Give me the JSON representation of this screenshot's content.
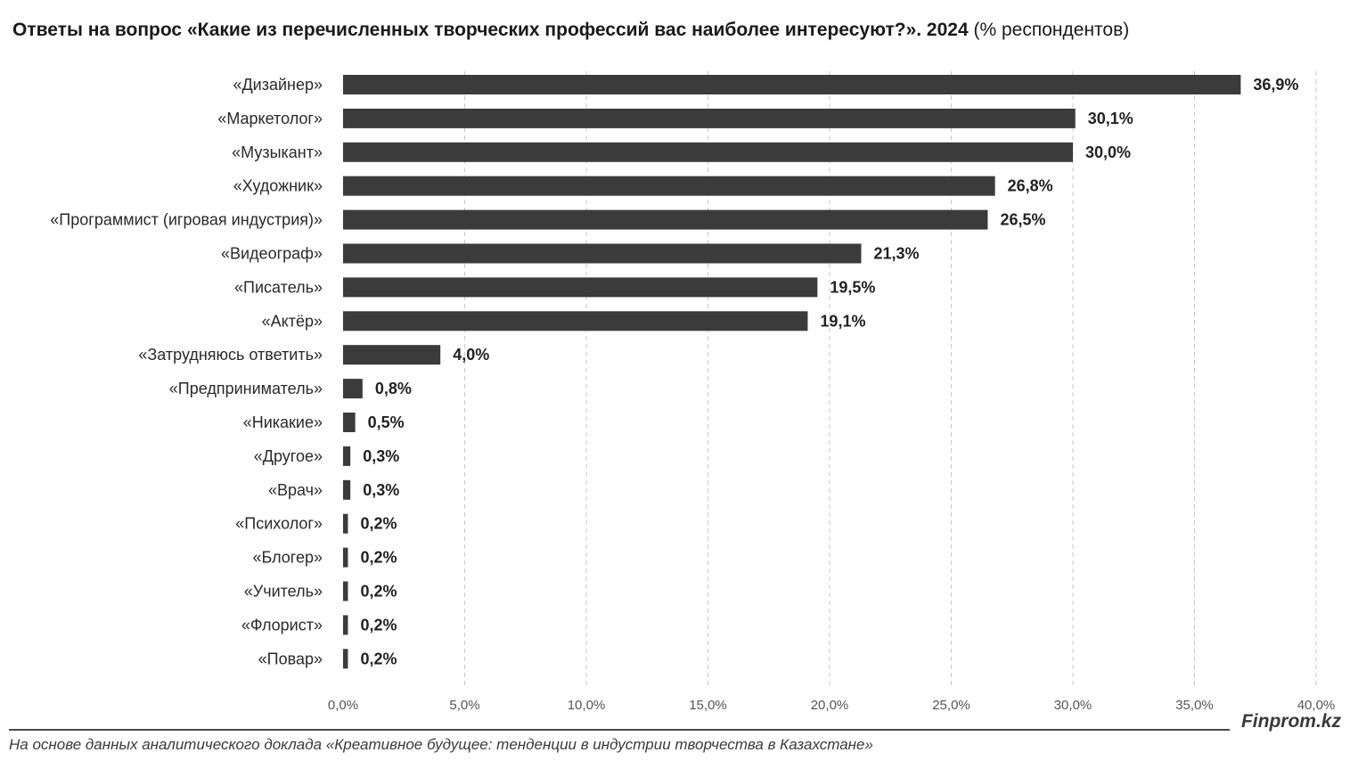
{
  "header": {
    "title_main": "Ответы на вопрос «Какие из перечисленных творческих профессий вас наиболее интересуют?». 2024",
    "title_unit": "(% респондентов)"
  },
  "chart_data": {
    "type": "bar",
    "orientation": "horizontal",
    "categories": [
      "«Дизайнер»",
      "«Маркетолог»",
      "«Музыкант»",
      "«Художник»",
      "«Программист (игровая индустрия)»",
      "«Видеограф»",
      "«Писатель»",
      "«Актёр»",
      "«Затрудняюсь ответить»",
      "«Предприниматель»",
      "«Никакие»",
      "«Другое»",
      "«Врач»",
      "«Психолог»",
      "«Блогер»",
      "«Учитель»",
      "«Флорист»",
      "«Повар»"
    ],
    "values": [
      36.9,
      30.1,
      30.0,
      26.8,
      26.5,
      21.3,
      19.5,
      19.1,
      4.0,
      0.8,
      0.5,
      0.3,
      0.3,
      0.2,
      0.2,
      0.2,
      0.2,
      0.2
    ],
    "value_labels": [
      "36,9%",
      "30,1%",
      "30,0%",
      "26,8%",
      "26,5%",
      "21,3%",
      "19,5%",
      "19,1%",
      "4,0%",
      "0,8%",
      "0,5%",
      "0,3%",
      "0,3%",
      "0,2%",
      "0,2%",
      "0,2%",
      "0,2%",
      "0,2%"
    ],
    "xlim": [
      0,
      40
    ],
    "xticks": [
      0,
      5,
      10,
      15,
      20,
      25,
      30,
      35,
      40
    ],
    "xtick_labels": [
      "0,0%",
      "5,0%",
      "10,0%",
      "15,0%",
      "20,0%",
      "25,0%",
      "30,0%",
      "35,0%",
      "40,0%"
    ],
    "grid": "vertical-dashed",
    "legend": "none",
    "bar_color": "#3b3b3b",
    "grid_color": "#c8c8c8"
  },
  "footer": {
    "brand": "Finprom.kz",
    "source": "На основе данных аналитического доклада «Креативное будущее: тенденции в индустрии творчества в Казахстане»"
  }
}
